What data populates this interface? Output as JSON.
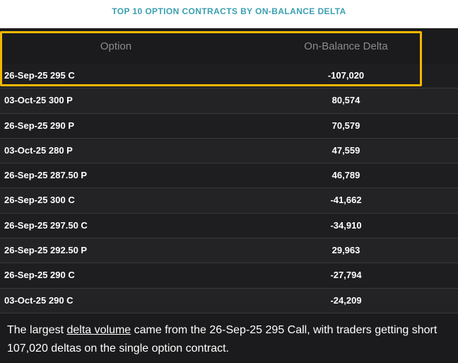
{
  "title": "TOP 10 OPTION CONTRACTS BY ON-BALANCE DELTA",
  "table": {
    "headers": {
      "option": "Option",
      "delta": "On-Balance Delta"
    },
    "rows": [
      {
        "option": "26-Sep-25 295 C",
        "delta": "-107,020"
      },
      {
        "option": "03-Oct-25 300 P",
        "delta": "80,574"
      },
      {
        "option": "26-Sep-25 290 P",
        "delta": "70,579"
      },
      {
        "option": "03-Oct-25 280 P",
        "delta": "47,559"
      },
      {
        "option": "26-Sep-25 287.50 P",
        "delta": "46,789"
      },
      {
        "option": "26-Sep-25 300 C",
        "delta": "-41,662"
      },
      {
        "option": "26-Sep-25 297.50 C",
        "delta": "-34,910"
      },
      {
        "option": "26-Sep-25 292.50 P",
        "delta": "29,963"
      },
      {
        "option": "26-Sep-25 290 C",
        "delta": "-27,794"
      },
      {
        "option": "03-Oct-25 290 C",
        "delta": "-24,209"
      }
    ]
  },
  "caption": {
    "before_link": "The largest ",
    "link": "delta volume",
    "after_link": " came from the 26-Sep-25 295 Call, with traders getting short 107,020 deltas on the single option contract."
  },
  "colors": {
    "title": "#3a9fb1",
    "highlight": "#f5b800",
    "background": "#1b1b1d"
  }
}
